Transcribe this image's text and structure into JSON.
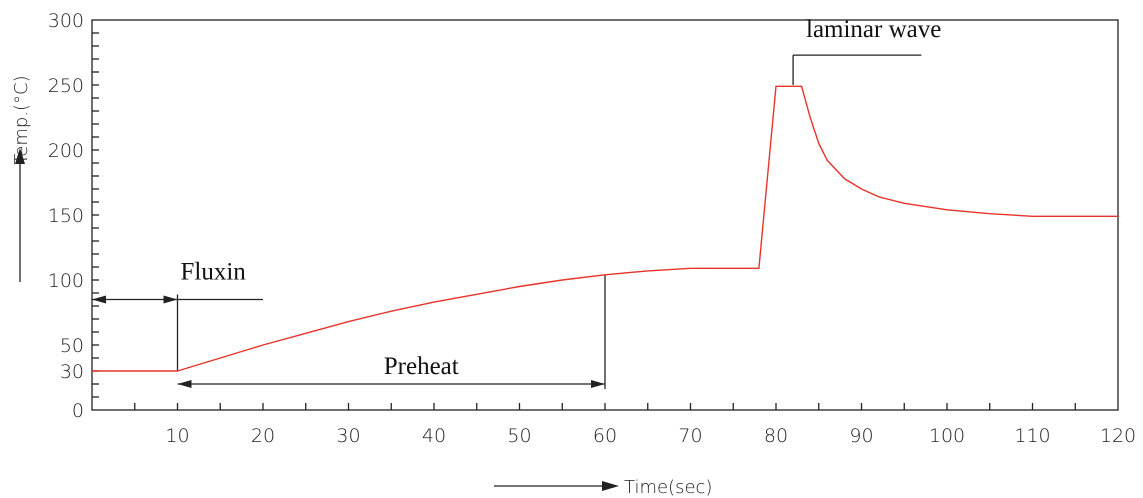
{
  "chart_data": {
    "type": "line",
    "xlabel": "Time(sec)",
    "ylabel": "Temp.(°C)",
    "xlim": [
      0,
      120
    ],
    "ylim": [
      0,
      300
    ],
    "x_ticks": [
      10,
      20,
      30,
      40,
      50,
      60,
      70,
      80,
      90,
      100,
      110,
      120
    ],
    "y_ticks": [
      0,
      30,
      50,
      100,
      150,
      200,
      250,
      300
    ],
    "series": [
      {
        "color": "#e8332a",
        "x": [
          0,
          10,
          15,
          20,
          25,
          30,
          35,
          40,
          45,
          50,
          55,
          60,
          65,
          70,
          75,
          78,
          80,
          81,
          83,
          84,
          85,
          86,
          88,
          90,
          92,
          95,
          100,
          105,
          110,
          115,
          120
        ],
        "y": [
          30,
          30,
          40,
          50,
          59,
          68,
          76,
          83,
          89,
          95,
          100,
          104,
          107,
          109,
          109,
          109,
          249,
          249,
          249,
          225,
          205,
          192,
          178,
          170,
          164,
          159,
          154,
          151,
          149,
          149,
          149
        ]
      }
    ],
    "annotations": {
      "fluxin": "Fluxin",
      "preheat": "Preheat",
      "laminar": "laminar wave"
    }
  }
}
